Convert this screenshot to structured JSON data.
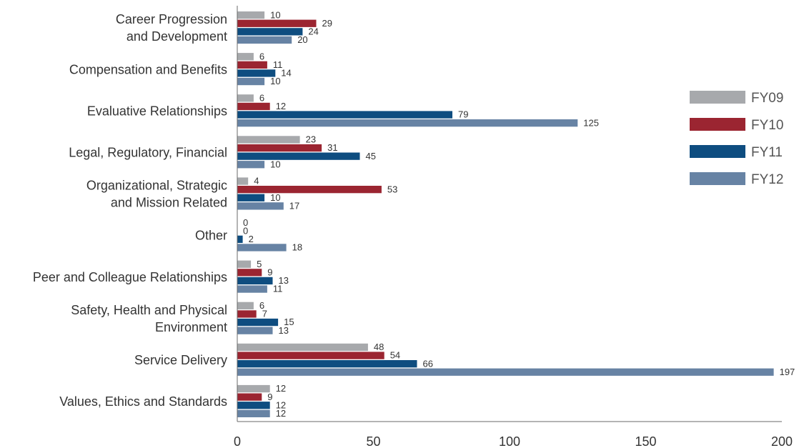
{
  "chart_data": {
    "type": "bar",
    "orientation": "horizontal",
    "title": "",
    "xlabel": "",
    "ylabel": "",
    "xlim": [
      0,
      200
    ],
    "xticks": [
      0,
      50,
      100,
      150,
      200
    ],
    "grid": false,
    "legend_position": "right",
    "categories": [
      [
        "Career Progression",
        "and Development"
      ],
      [
        "Compensation and Benefits"
      ],
      [
        "Evaluative Relationships"
      ],
      [
        "Legal, Regulatory, Financial"
      ],
      [
        "Organizational, Strategic",
        "and Mission Related"
      ],
      [
        "Other"
      ],
      [
        "Peer and Colleague Relationships"
      ],
      [
        "Safety, Health and Physical",
        "Environment"
      ],
      [
        "Service Delivery"
      ],
      [
        "Values, Ethics and Standards"
      ]
    ],
    "series": [
      {
        "name": "FY09",
        "color": "#a7a9ac",
        "values": [
          10,
          6,
          6,
          23,
          4,
          0,
          5,
          6,
          48,
          12
        ]
      },
      {
        "name": "FY10",
        "color": "#9b2531",
        "values": [
          29,
          11,
          12,
          31,
          53,
          0,
          9,
          7,
          54,
          9
        ]
      },
      {
        "name": "FY11",
        "color": "#0e4d80",
        "values": [
          24,
          14,
          79,
          45,
          10,
          2,
          13,
          15,
          66,
          12
        ]
      },
      {
        "name": "FY12",
        "color": "#6783a4",
        "values": [
          20,
          10,
          125,
          10,
          17,
          18,
          11,
          13,
          197,
          12
        ]
      }
    ]
  }
}
